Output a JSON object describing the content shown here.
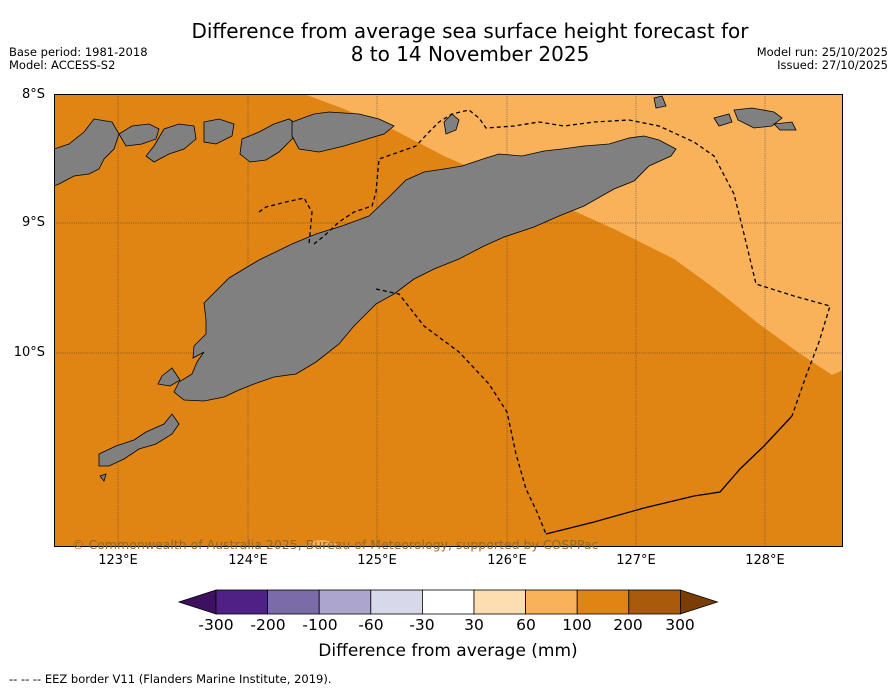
{
  "title": {
    "line1": "Difference from average sea surface height forecast for",
    "line2": "8 to 14 November 2025"
  },
  "meta": {
    "base_period": "Base period: 1981-2018",
    "model": "Model: ACCESS-S2",
    "model_run": "Model run: 25/10/2025",
    "issued": "Issued: 27/10/2025"
  },
  "axes": {
    "latitudes": [
      "8°S",
      "9°S",
      "10°S"
    ],
    "longitudes": [
      "123°E",
      "124°E",
      "125°E",
      "126°E",
      "127°E",
      "128°E"
    ]
  },
  "copyright": "© Commonwealth of Australia 2025, Bureau of Meteorology, supported by COSPPac",
  "colorbar": {
    "label": "Difference from average (mm)",
    "ticks": [
      "-300",
      "-200",
      "-100",
      "-60",
      "-30",
      "30",
      "60",
      "100",
      "200",
      "300"
    ],
    "colors": [
      "#3d1160",
      "#4f2187",
      "#7c6ba9",
      "#aca6cf",
      "#d7d8e9",
      "#ffffff",
      "#fddeb0",
      "#f9b15a",
      "#e08413",
      "#a95a0a",
      "#7a3d05"
    ]
  },
  "footnote": "--  --  -- EEZ border V11 (Flanders Marine Institute, 2019).",
  "map_colors": {
    "ocean_high": "#e08413",
    "ocean_mid": "#f9b15a",
    "land": "#808080"
  }
}
